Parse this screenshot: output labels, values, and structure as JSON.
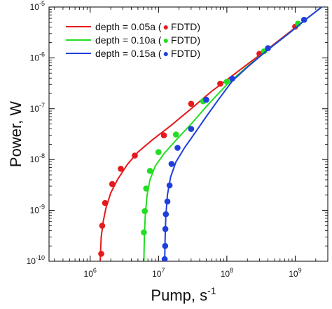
{
  "chart_data": {
    "type": "line",
    "xlabel": {
      "base": "Pump, s",
      "sup": "-1"
    },
    "ylabel": "Power, W",
    "x_scale": "log",
    "y_scale": "log",
    "xlim": [
      250000.0,
      3000000000.0
    ],
    "ylim": [
      1e-10,
      1e-05
    ],
    "x_ticks": [
      {
        "value": 1000000.0,
        "base": "10",
        "exp": "6"
      },
      {
        "value": 10000000.0,
        "base": "10",
        "exp": "7"
      },
      {
        "value": 100000000.0,
        "base": "10",
        "exp": "8"
      },
      {
        "value": 1000000000.0,
        "base": "10",
        "exp": "9"
      }
    ],
    "y_ticks": [
      {
        "value": 1e-10,
        "base": "10",
        "exp": "-10"
      },
      {
        "value": 1e-09,
        "base": "10",
        "exp": "-9"
      },
      {
        "value": 1e-08,
        "base": "10",
        "exp": "-8"
      },
      {
        "value": 1e-07,
        "base": "10",
        "exp": "-7"
      },
      {
        "value": 1e-06,
        "base": "10",
        "exp": "-6"
      },
      {
        "value": 1e-05,
        "base": "10",
        "exp": "-5"
      }
    ],
    "legend_position": "top-left",
    "grid": false,
    "series": [
      {
        "name": "depth = 0.05a",
        "marker_label": "FDTD",
        "color": "#e41a1c",
        "line": [
          [
            1400000.0,
            1e-10
          ],
          [
            1450000.0,
            3e-10
          ],
          [
            1550000.0,
            6e-10
          ],
          [
            1700000.0,
            1.1e-09
          ],
          [
            2000000.0,
            2.2e-09
          ],
          [
            2500000.0,
            4e-09
          ],
          [
            3500000.0,
            8e-09
          ],
          [
            5000000.0,
            1.4e-08
          ],
          [
            8000000.0,
            2.4e-08
          ],
          [
            15000000.0,
            4.6e-08
          ],
          [
            30000000.0,
            1e-07
          ],
          [
            60000000.0,
            2.2e-07
          ],
          [
            100000000.0,
            3.7e-07
          ],
          [
            200000000.0,
            7.5e-07
          ],
          [
            400000000.0,
            1.5e-06
          ],
          [
            800000000.0,
            3.1e-06
          ],
          [
            1500000000.0,
            6e-06
          ],
          [
            2900000000.0,
            1.2e-05
          ]
        ],
        "points": [
          [
            1450000.0,
            1.4e-10
          ],
          [
            1500000.0,
            5e-10
          ],
          [
            1650000.0,
            1.4e-09
          ],
          [
            2100000.0,
            3.3e-09
          ],
          [
            2800000.0,
            6.6e-09
          ],
          [
            4500000.0,
            1.2e-08
          ],
          [
            12000000.0,
            3e-08
          ],
          [
            30000000.0,
            1.25e-07
          ],
          [
            80000000.0,
            3.1e-07
          ],
          [
            300000000.0,
            1.2e-06
          ],
          [
            1000000000.0,
            4.1e-06
          ]
        ]
      },
      {
        "name": "depth = 0.10a",
        "marker_label": "FDTD",
        "color": "#22dd22",
        "line": [
          [
            6100000.0,
            1e-10
          ],
          [
            6200000.0,
            3e-10
          ],
          [
            6400000.0,
            8e-10
          ],
          [
            6800000.0,
            2e-09
          ],
          [
            7500000.0,
            4e-09
          ],
          [
            9000000.0,
            7.5e-09
          ],
          [
            12000000.0,
            1.3e-08
          ],
          [
            18000000.0,
            2.4e-08
          ],
          [
            30000000.0,
            5e-08
          ],
          [
            50000000.0,
            1.1e-07
          ],
          [
            100000000.0,
            3e-07
          ],
          [
            200000000.0,
            6.8e-07
          ],
          [
            400000000.0,
            1.45e-06
          ],
          [
            800000000.0,
            3e-06
          ],
          [
            1500000000.0,
            6e-06
          ],
          [
            2900000000.0,
            1.2e-05
          ]
        ],
        "points": [
          [
            6100000.0,
            3.7e-10
          ],
          [
            6300000.0,
            9.7e-10
          ],
          [
            6600000.0,
            2.7e-09
          ],
          [
            7500000.0,
            6e-09
          ],
          [
            10000000.0,
            1.4e-08
          ],
          [
            18000000.0,
            3.1e-08
          ],
          [
            45000000.0,
            1.4e-07
          ],
          [
            100000000.0,
            3.4e-07
          ],
          [
            350000000.0,
            1.35e-06
          ],
          [
            1100000000.0,
            4.7e-06
          ]
        ]
      },
      {
        "name": "depth = 0.15a",
        "marker_label": "FDTD",
        "color": "#1f3fdd",
        "line": [
          [
            12300000.0,
            1e-10
          ],
          [
            12500000.0,
            3e-10
          ],
          [
            12800000.0,
            8e-10
          ],
          [
            13500000.0,
            2e-09
          ],
          [
            15000000.0,
            4.5e-09
          ],
          [
            18000000.0,
            9e-09
          ],
          [
            24000000.0,
            1.7e-08
          ],
          [
            35000000.0,
            3.5e-08
          ],
          [
            50000000.0,
            7e-08
          ],
          [
            75000000.0,
            1.5e-07
          ],
          [
            120000000.0,
            3.5e-07
          ],
          [
            200000000.0,
            6.6e-07
          ],
          [
            400000000.0,
            1.45e-06
          ],
          [
            800000000.0,
            3e-06
          ],
          [
            1500000000.0,
            6e-06
          ],
          [
            2900000000.0,
            1.2e-05
          ]
        ],
        "points": [
          [
            12300000.0,
            1.1e-10
          ],
          [
            12500000.0,
            2e-10
          ],
          [
            12600000.0,
            4.3e-10
          ],
          [
            12800000.0,
            8.4e-10
          ],
          [
            13500000.0,
            1.5e-09
          ],
          [
            14500000.0,
            3.1e-09
          ],
          [
            15500000.0,
            8.2e-09
          ],
          [
            19000000.0,
            1.7e-08
          ],
          [
            30000000.0,
            4e-08
          ],
          [
            50000000.0,
            1.5e-07
          ],
          [
            120000000.0,
            3.9e-07
          ],
          [
            400000000.0,
            1.55e-06
          ],
          [
            1350000000.0,
            5.6e-06
          ]
        ]
      }
    ]
  }
}
